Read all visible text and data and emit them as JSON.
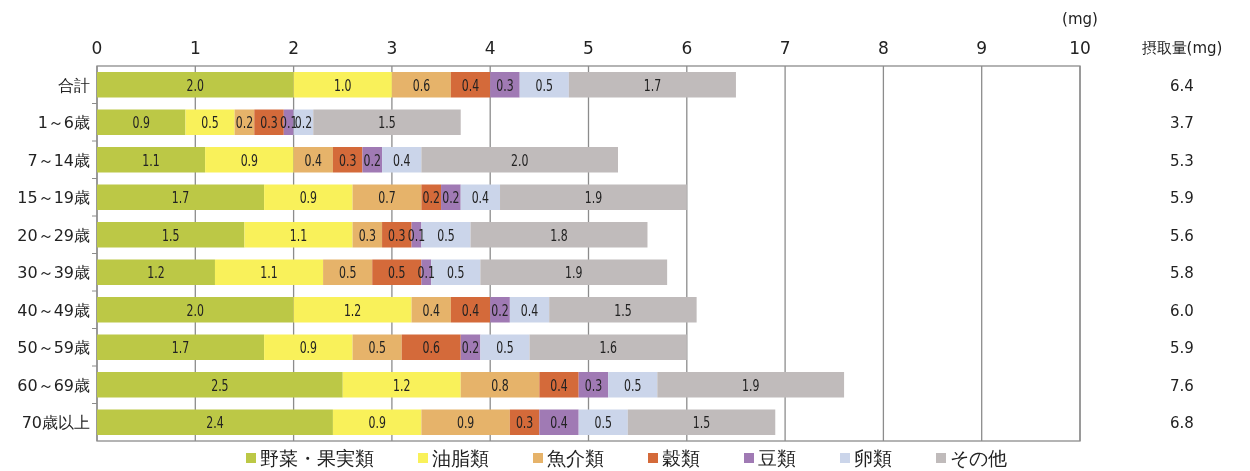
{
  "chart_data": {
    "type": "bar",
    "orientation": "horizontal",
    "stacked": true,
    "xlabel": "(mg)",
    "annotations": [
      "摂取量(mg)",
      "6.4",
      "3.7",
      "5.3",
      "5.9",
      "5.6",
      "5.8",
      "6.0",
      "5.9",
      "7.6",
      "6.8"
    ],
    "categories": [
      "合計",
      "1～6歳",
      "7～14歳",
      "15～19歳",
      "20～29歳",
      "30～39歳",
      "40～49歳",
      "50～59歳",
      "60～69歳",
      "70歳以上"
    ],
    "series": [
      {
        "name": "野菜・果実類",
        "color": "#bcc846",
        "values": [
          2.0,
          0.9,
          1.1,
          1.7,
          1.5,
          1.2,
          2.0,
          1.7,
          2.5,
          2.4
        ],
        "value_labels": [
          "2.0",
          "0.9",
          "1.1",
          "1.7",
          "1.5",
          "1.2",
          "2.0",
          "1.7",
          "2.5",
          "2.4"
        ]
      },
      {
        "name": "油脂類",
        "color": "#f9f15a",
        "values": [
          1.0,
          0.5,
          0.9,
          0.9,
          1.1,
          1.1,
          1.2,
          0.9,
          1.2,
          0.9
        ],
        "value_labels": [
          "1.0",
          "0.5",
          "0.9",
          "0.9",
          "1.1",
          "1.1",
          "1.2",
          "0.9",
          "1.2",
          "0.9"
        ]
      },
      {
        "name": "魚介類",
        "color": "#e6b36a",
        "values": [
          0.6,
          0.2,
          0.4,
          0.7,
          0.3,
          0.5,
          0.4,
          0.5,
          0.8,
          0.9
        ],
        "value_labels": [
          "0.6",
          "0.2",
          "0.4",
          "0.7",
          "0.3",
          "0.5",
          "0.4",
          "0.5",
          "0.8",
          "0.9"
        ]
      },
      {
        "name": "穀類",
        "color": "#d46a3a",
        "values": [
          0.4,
          0.3,
          0.3,
          0.2,
          0.3,
          0.5,
          0.4,
          0.6,
          0.4,
          0.3
        ],
        "value_labels": [
          "0.4",
          "0.3",
          "0.3",
          "0.2",
          "0.3",
          "0.5",
          "0.4",
          "0.6",
          "0.4",
          "0.3"
        ]
      },
      {
        "name": "豆類",
        "color": "#a07ab4",
        "values": [
          0.3,
          0.1,
          0.2,
          0.2,
          0.1,
          0.1,
          0.2,
          0.2,
          0.3,
          0.4
        ],
        "value_labels": [
          "0.3",
          "0.1",
          "0.2",
          "0.2",
          "0.1",
          "0.1",
          "0.2",
          "0.2",
          "0.3",
          "0.4"
        ]
      },
      {
        "name": "卵類",
        "color": "#cbd5ea",
        "values": [
          0.5,
          0.2,
          0.4,
          0.4,
          0.5,
          0.5,
          0.4,
          0.5,
          0.5,
          0.5
        ],
        "value_labels": [
          "0.5",
          "0.2",
          "0.4",
          "0.4",
          "0.5",
          "0.5",
          "0.4",
          "0.5",
          "0.5",
          "0.5"
        ]
      },
      {
        "name": "その他",
        "color": "#c0bbbb",
        "values": [
          1.7,
          1.5,
          2.0,
          1.9,
          1.8,
          1.9,
          1.5,
          1.6,
          1.9,
          1.5
        ],
        "value_labels": [
          "1.7",
          "1.5",
          "2.0",
          "1.9",
          "1.8",
          "1.9",
          "1.5",
          "1.6",
          "1.9",
          "1.5"
        ]
      }
    ],
    "xlim": [
      0,
      10
    ],
    "xticks": [
      0,
      1,
      2,
      3,
      4,
      5,
      6,
      7,
      8,
      9,
      10
    ],
    "grid": "x",
    "legend": "bottom"
  }
}
